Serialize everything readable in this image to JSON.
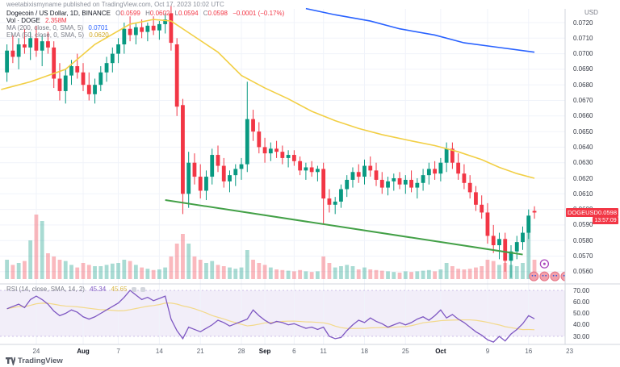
{
  "header": {
    "published_line": "weetabixismyname published on TradingView.com, Oct 17, 2023 10:02 UTC"
  },
  "legend": {
    "title": "Dogecoin / US Dollar, 1D, BINANCE",
    "o_label": "O",
    "o": "0.0599",
    "h_label": "H",
    "h": "0.0602",
    "l_label": "L",
    "l": "0.0594",
    "c_label": "C",
    "c": "0.0598",
    "change": "−0.0001 (−0.17%)",
    "vol_label": "Vol · DOGE",
    "vol_value": "2.358M",
    "ma_label": "MA (200, close, 0, SMA, 5)",
    "ma_value": "0.0701",
    "ema_label": "EMA (50, close, 0, SMA, 5)",
    "ema_value": "0.0620"
  },
  "rsi_legend": {
    "label": "RSI (14, close, SMA, 14, 2)",
    "value": "45.34",
    "ma_value": "45.65"
  },
  "price_axis": {
    "currency": "USD",
    "ticks": [
      "0.0720",
      "0.0710",
      "0.0700",
      "0.0690",
      "0.0680",
      "0.0670",
      "0.0660",
      "0.0650",
      "0.0640",
      "0.0630",
      "0.0620",
      "0.0610",
      "0.0600",
      "0.0590",
      "0.0580",
      "0.0570",
      "0.0560"
    ],
    "label_symbol": "DOGEUSD",
    "label_price": "0.0598",
    "countdown": "13:57:09"
  },
  "rsi_axis": {
    "ticks": [
      "70.00",
      "60.00",
      "50.00",
      "40.00",
      "30.00"
    ]
  },
  "time_axis": {
    "labels": [
      {
        "text": "24",
        "t": 5
      },
      {
        "text": "Aug",
        "t": 13,
        "bold": true
      },
      {
        "text": "7",
        "t": 19
      },
      {
        "text": "14",
        "t": 26
      },
      {
        "text": "21",
        "t": 33
      },
      {
        "text": "28",
        "t": 40
      },
      {
        "text": "Sep",
        "t": 44,
        "bold": true
      },
      {
        "text": "6",
        "t": 49
      },
      {
        "text": "11",
        "t": 54
      },
      {
        "text": "18",
        "t": 61
      },
      {
        "text": "25",
        "t": 68
      },
      {
        "text": "Oct",
        "t": 74,
        "bold": true
      },
      {
        "text": "9",
        "t": 82
      },
      {
        "text": "16",
        "t": 89
      },
      {
        "text": "23",
        "t": 96
      }
    ]
  },
  "footer": {
    "brand": "TradingView"
  },
  "colors": {
    "up": "#089981",
    "down": "#f23645",
    "vol_up": "rgba(8,153,129,0.35)",
    "vol_down": "rgba(242,54,69,0.35)",
    "ma200": "#2962ff",
    "ema50": "#f2cf45",
    "trend": "#43a047",
    "rsi": "#7e57c2",
    "rsi_ma": "#f3d98a",
    "label_bg": "#f23645",
    "grid": "#f0f3fa",
    "band": "rgba(126,87,194,0.10)",
    "separator": "#d1d4dc"
  },
  "stickers": {
    "ring": {
      "t": 91.7,
      "p": 0.0565
    },
    "faces": [
      {
        "t": 89.9,
        "p": 0.0557
      },
      {
        "t": 91.7,
        "p": 0.0557
      },
      {
        "t": 93.5,
        "p": 0.0557
      },
      {
        "t": 95.3,
        "p": 0.0557
      }
    ]
  },
  "chart_data": {
    "type": "candlestick",
    "title": "Dogecoin / US Dollar",
    "symbol": "DOGEUSD",
    "exchange": "BINANCE",
    "interval": "1D",
    "quote_currency": "USD",
    "start_date": "2023-07-19",
    "end_date": "2023-10-17",
    "bar_interval_days": 1,
    "ylim": [
      0.0556,
      0.0735
    ],
    "ohlcv_fields": [
      "open",
      "high",
      "low",
      "close",
      "relative_volume"
    ],
    "candles": [
      [
        0.0688,
        0.0706,
        0.0682,
        0.0702,
        0.3
      ],
      [
        0.0702,
        0.0712,
        0.0694,
        0.0698,
        0.22
      ],
      [
        0.0698,
        0.071,
        0.069,
        0.0706,
        0.25
      ],
      [
        0.0706,
        0.0716,
        0.07,
        0.0704,
        0.28
      ],
      [
        0.0704,
        0.0714,
        0.0696,
        0.071,
        0.6
      ],
      [
        0.071,
        0.0718,
        0.0698,
        0.0702,
        1.0
      ],
      [
        0.0702,
        0.0712,
        0.0692,
        0.0708,
        0.9
      ],
      [
        0.0708,
        0.0714,
        0.07,
        0.0704,
        0.4
      ],
      [
        0.0704,
        0.0708,
        0.0678,
        0.0684,
        0.35
      ],
      [
        0.0684,
        0.0694,
        0.067,
        0.0676,
        0.3
      ],
      [
        0.0676,
        0.069,
        0.0668,
        0.0686,
        0.28
      ],
      [
        0.0686,
        0.0696,
        0.068,
        0.0692,
        0.22
      ],
      [
        0.0692,
        0.07,
        0.0684,
        0.0688,
        0.18
      ],
      [
        0.0688,
        0.0694,
        0.0676,
        0.068,
        0.25
      ],
      [
        0.068,
        0.0688,
        0.067,
        0.0674,
        0.22
      ],
      [
        0.0674,
        0.0684,
        0.0668,
        0.068,
        0.2
      ],
      [
        0.068,
        0.0692,
        0.0676,
        0.0688,
        0.2
      ],
      [
        0.0688,
        0.0698,
        0.0682,
        0.0694,
        0.22
      ],
      [
        0.0694,
        0.0704,
        0.0688,
        0.07,
        0.24
      ],
      [
        0.07,
        0.071,
        0.0694,
        0.0706,
        0.25
      ],
      [
        0.0706,
        0.072,
        0.07,
        0.0716,
        0.3
      ],
      [
        0.0716,
        0.0724,
        0.0708,
        0.0712,
        0.28
      ],
      [
        0.0712,
        0.072,
        0.0706,
        0.0717,
        0.22
      ],
      [
        0.0717,
        0.0722,
        0.071,
        0.0714,
        0.18
      ],
      [
        0.0714,
        0.072,
        0.0708,
        0.0718,
        0.16
      ],
      [
        0.0718,
        0.0724,
        0.0712,
        0.0715,
        0.14
      ],
      [
        0.0715,
        0.0721,
        0.0709,
        0.0719,
        0.15
      ],
      [
        0.0719,
        0.0726,
        0.0713,
        0.0722,
        0.18
      ],
      [
        0.0726,
        0.0731,
        0.0702,
        0.0707,
        0.35
      ],
      [
        0.0706,
        0.071,
        0.066,
        0.0666,
        0.55
      ],
      [
        0.0667,
        0.0671,
        0.0597,
        0.061,
        0.7
      ],
      [
        0.061,
        0.0637,
        0.0601,
        0.063,
        0.55
      ],
      [
        0.063,
        0.0636,
        0.0616,
        0.0621,
        0.35
      ],
      [
        0.0621,
        0.0629,
        0.0607,
        0.0612,
        0.3
      ],
      [
        0.0612,
        0.0625,
        0.0606,
        0.0621,
        0.25
      ],
      [
        0.0621,
        0.0639,
        0.0616,
        0.0635,
        0.28
      ],
      [
        0.0635,
        0.0641,
        0.0624,
        0.0628,
        0.22
      ],
      [
        0.0628,
        0.0633,
        0.0614,
        0.0618,
        0.2
      ],
      [
        0.0618,
        0.0625,
        0.0611,
        0.0622,
        0.18
      ],
      [
        0.0622,
        0.0629,
        0.0615,
        0.0626,
        0.16
      ],
      [
        0.0626,
        0.0633,
        0.0619,
        0.0629,
        0.18
      ],
      [
        0.0629,
        0.0682,
        0.0624,
        0.0658,
        0.45
      ],
      [
        0.0658,
        0.0664,
        0.0644,
        0.065,
        0.3
      ],
      [
        0.065,
        0.0656,
        0.0636,
        0.064,
        0.25
      ],
      [
        0.064,
        0.0646,
        0.063,
        0.0636,
        0.22
      ],
      [
        0.0636,
        0.0643,
        0.0631,
        0.0639,
        0.18
      ],
      [
        0.0639,
        0.0644,
        0.0633,
        0.0637,
        0.15
      ],
      [
        0.0637,
        0.0641,
        0.0629,
        0.0633,
        0.14
      ],
      [
        0.0633,
        0.0638,
        0.0627,
        0.0635,
        0.13
      ],
      [
        0.0635,
        0.0638,
        0.0628,
        0.0631,
        0.12
      ],
      [
        0.0631,
        0.0634,
        0.0622,
        0.0625,
        0.14
      ],
      [
        0.0625,
        0.063,
        0.0619,
        0.0627,
        0.12
      ],
      [
        0.0627,
        0.0631,
        0.0621,
        0.0624,
        0.11
      ],
      [
        0.0624,
        0.0628,
        0.0618,
        0.0626,
        0.12
      ],
      [
        0.0626,
        0.063,
        0.0591,
        0.0607,
        0.35
      ],
      [
        0.0607,
        0.0613,
        0.0598,
        0.0603,
        0.25
      ],
      [
        0.0603,
        0.0608,
        0.0597,
        0.0605,
        0.18
      ],
      [
        0.0605,
        0.0616,
        0.0601,
        0.0613,
        0.2
      ],
      [
        0.0613,
        0.0622,
        0.0608,
        0.0619,
        0.22
      ],
      [
        0.0619,
        0.0627,
        0.0614,
        0.0624,
        0.2
      ],
      [
        0.0624,
        0.0629,
        0.0617,
        0.0621,
        0.15
      ],
      [
        0.0621,
        0.0632,
        0.0616,
        0.0628,
        0.18
      ],
      [
        0.0628,
        0.0634,
        0.0621,
        0.0625,
        0.15
      ],
      [
        0.0625,
        0.063,
        0.0615,
        0.0619,
        0.14
      ],
      [
        0.0619,
        0.0624,
        0.061,
        0.0614,
        0.13
      ],
      [
        0.0614,
        0.0621,
        0.0609,
        0.0618,
        0.12
      ],
      [
        0.0618,
        0.0623,
        0.0612,
        0.062,
        0.11
      ],
      [
        0.062,
        0.0624,
        0.0613,
        0.0616,
        0.1
      ],
      [
        0.0616,
        0.0622,
        0.061,
        0.0619,
        0.12
      ],
      [
        0.0619,
        0.0625,
        0.0611,
        0.0614,
        0.11
      ],
      [
        0.0614,
        0.062,
        0.0607,
        0.0617,
        0.12
      ],
      [
        0.0617,
        0.0626,
        0.0612,
        0.0622,
        0.13
      ],
      [
        0.0622,
        0.063,
        0.0616,
        0.0626,
        0.14
      ],
      [
        0.0626,
        0.0631,
        0.0619,
        0.0623,
        0.12
      ],
      [
        0.0623,
        0.0633,
        0.0618,
        0.063,
        0.15
      ],
      [
        0.063,
        0.0643,
        0.0624,
        0.0639,
        0.25
      ],
      [
        0.0639,
        0.0643,
        0.0626,
        0.063,
        0.2
      ],
      [
        0.063,
        0.0636,
        0.0619,
        0.0623,
        0.16
      ],
      [
        0.0623,
        0.0629,
        0.0613,
        0.0617,
        0.15
      ],
      [
        0.0617,
        0.0622,
        0.0607,
        0.0611,
        0.16
      ],
      [
        0.0611,
        0.0615,
        0.0599,
        0.0603,
        0.18
      ],
      [
        0.0603,
        0.0609,
        0.0594,
        0.0598,
        0.2
      ],
      [
        0.0598,
        0.0604,
        0.0578,
        0.0583,
        0.3
      ],
      [
        0.0583,
        0.059,
        0.0572,
        0.0577,
        0.28
      ],
      [
        0.0577,
        0.0585,
        0.0568,
        0.0581,
        0.22
      ],
      [
        0.0581,
        0.0585,
        0.056,
        0.0567,
        0.25
      ],
      [
        0.0567,
        0.0577,
        0.0556,
        0.0573,
        0.22
      ],
      [
        0.0573,
        0.0583,
        0.0568,
        0.0579,
        0.2
      ],
      [
        0.0579,
        0.0589,
        0.0574,
        0.0585,
        0.25
      ],
      [
        0.0585,
        0.06,
        0.0581,
        0.0596,
        0.95
      ],
      [
        0.0599,
        0.0602,
        0.0594,
        0.0598,
        0.3
      ]
    ],
    "ema50_points": [
      [
        -1,
        0.0677
      ],
      [
        0,
        0.0678
      ],
      [
        4,
        0.0682
      ],
      [
        10,
        0.069
      ],
      [
        15,
        0.0706
      ],
      [
        21,
        0.0719
      ],
      [
        25,
        0.0722
      ],
      [
        28,
        0.0721
      ],
      [
        32,
        0.0711
      ],
      [
        36,
        0.0701
      ],
      [
        40,
        0.0686
      ],
      [
        44,
        0.0678
      ],
      [
        48,
        0.0671
      ],
      [
        52,
        0.0663
      ],
      [
        56,
        0.0657
      ],
      [
        60,
        0.0652
      ],
      [
        64,
        0.0648
      ],
      [
        69,
        0.0644
      ],
      [
        73,
        0.0641
      ],
      [
        77,
        0.0637
      ],
      [
        81,
        0.0632
      ],
      [
        84,
        0.0627
      ],
      [
        87,
        0.0623
      ],
      [
        90,
        0.062
      ]
    ],
    "ma200_points": [
      [
        51,
        0.0729
      ],
      [
        56,
        0.0725
      ],
      [
        62,
        0.0721
      ],
      [
        67,
        0.0716
      ],
      [
        73,
        0.0712
      ],
      [
        78,
        0.0707
      ],
      [
        84,
        0.0704
      ],
      [
        90,
        0.0701
      ]
    ],
    "trendline": {
      "t1": 27,
      "p1": 0.0606,
      "t2": 88,
      "p2": 0.0571
    },
    "rsi": {
      "period": 14,
      "smoothing": "SMA(14)",
      "overbought": 70,
      "oversold": 30,
      "values": [
        54,
        56,
        58,
        55,
        62,
        65,
        62,
        58,
        52,
        48,
        50,
        53,
        51,
        47,
        45,
        47,
        50,
        53,
        56,
        59,
        64,
        70,
        66,
        62,
        64,
        61,
        63,
        65,
        45,
        35,
        28,
        38,
        36,
        34,
        37,
        40,
        44,
        42,
        39,
        41,
        43,
        45,
        53,
        48,
        44,
        41,
        43,
        42,
        40,
        41,
        39,
        37,
        38,
        36,
        38,
        30,
        28,
        29,
        35,
        40,
        44,
        42,
        46,
        43,
        41,
        38,
        40,
        42,
        40,
        42,
        45,
        47,
        44,
        48,
        53,
        46,
        49,
        45,
        42,
        38,
        34,
        31,
        27,
        25,
        30,
        26,
        32,
        36,
        41,
        48,
        45.3
      ]
    }
  }
}
